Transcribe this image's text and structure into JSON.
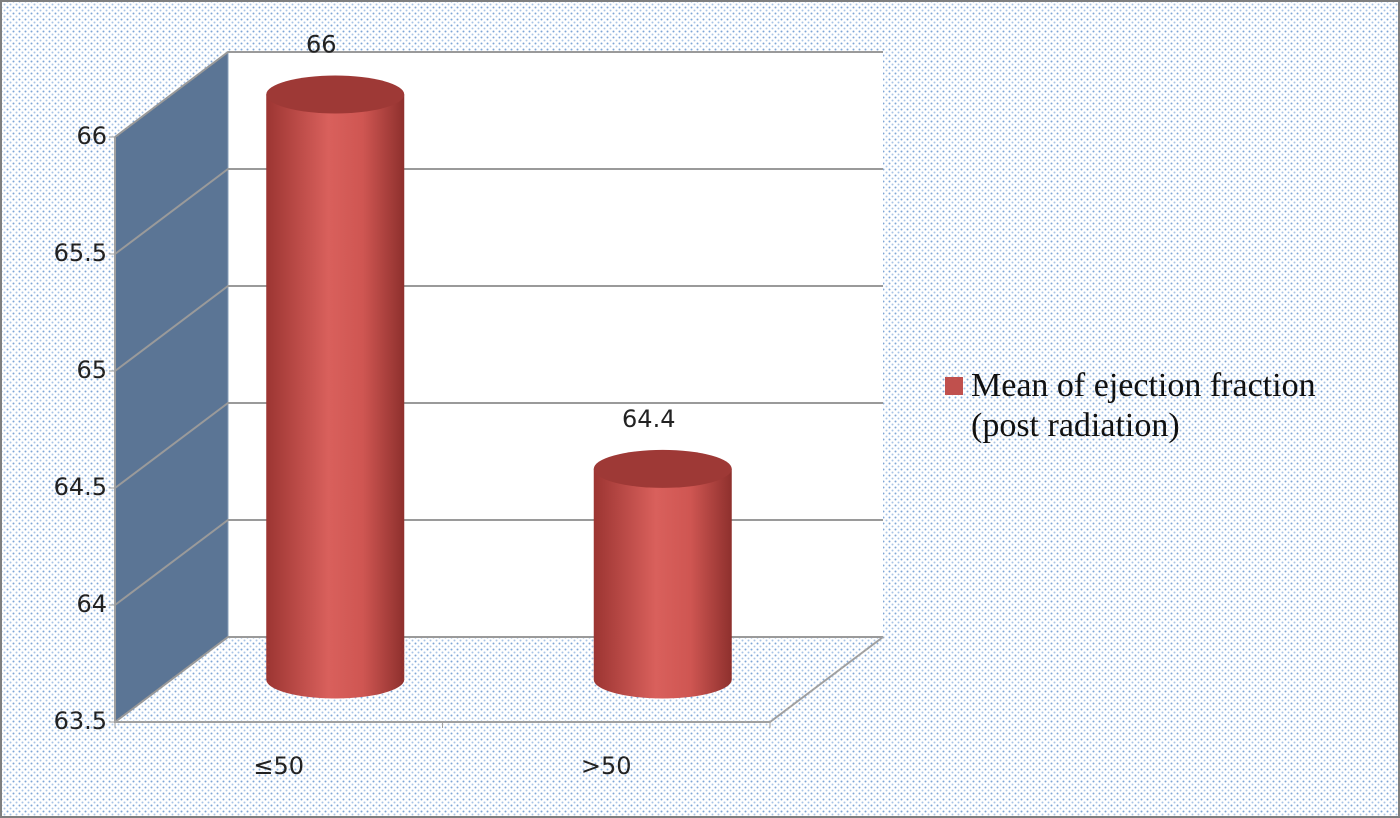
{
  "chart_data": {
    "type": "bar3d",
    "categories": [
      "≤50",
      ">50"
    ],
    "series": [
      {
        "name": "Mean of ejection fraction (post radiation)",
        "color": "#c0504d",
        "values": [
          66,
          64.4
        ]
      }
    ],
    "ylim": [
      63.5,
      66
    ],
    "yticks": [
      63.5,
      64,
      64.5,
      65,
      65.5,
      66
    ],
    "grid": true,
    "legend": "right"
  }
}
